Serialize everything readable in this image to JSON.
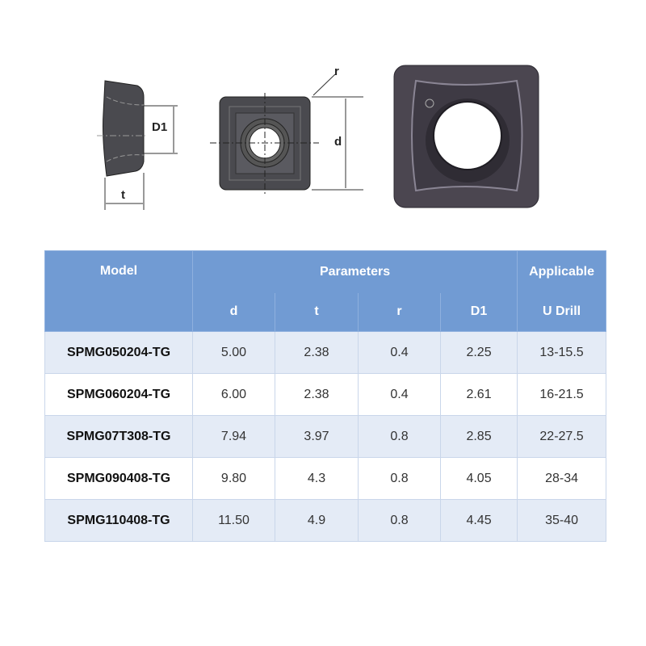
{
  "diagram": {
    "labels": {
      "D1": "D1",
      "t": "t",
      "r": "r",
      "d": "d"
    }
  },
  "table": {
    "header": {
      "model": "Model",
      "parameters": "Parameters",
      "applicable": "Applicable",
      "sub": [
        "d",
        "t",
        "r",
        "D1",
        "U Drill"
      ]
    },
    "rows": [
      {
        "model": "SPMG050204-TG",
        "d": "5.00",
        "t": "2.38",
        "r": "0.4",
        "D1": "2.25",
        "udrill": "13-15.5"
      },
      {
        "model": "SPMG060204-TG",
        "d": "6.00",
        "t": "2.38",
        "r": "0.4",
        "D1": "2.61",
        "udrill": "16-21.5"
      },
      {
        "model": "SPMG07T308-TG",
        "d": "7.94",
        "t": "3.97",
        "r": "0.8",
        "D1": "2.85",
        "udrill": "22-27.5"
      },
      {
        "model": "SPMG090408-TG",
        "d": "9.80",
        "t": "4.3",
        "r": "0.8",
        "D1": "4.05",
        "udrill": "28-34"
      },
      {
        "model": "SPMG110408-TG",
        "d": "11.50",
        "t": "4.9",
        "r": "0.8",
        "D1": "4.45",
        "udrill": "35-40"
      }
    ]
  },
  "colors": {
    "header": "#719bd3",
    "row_alt": "#e4ebf6"
  }
}
